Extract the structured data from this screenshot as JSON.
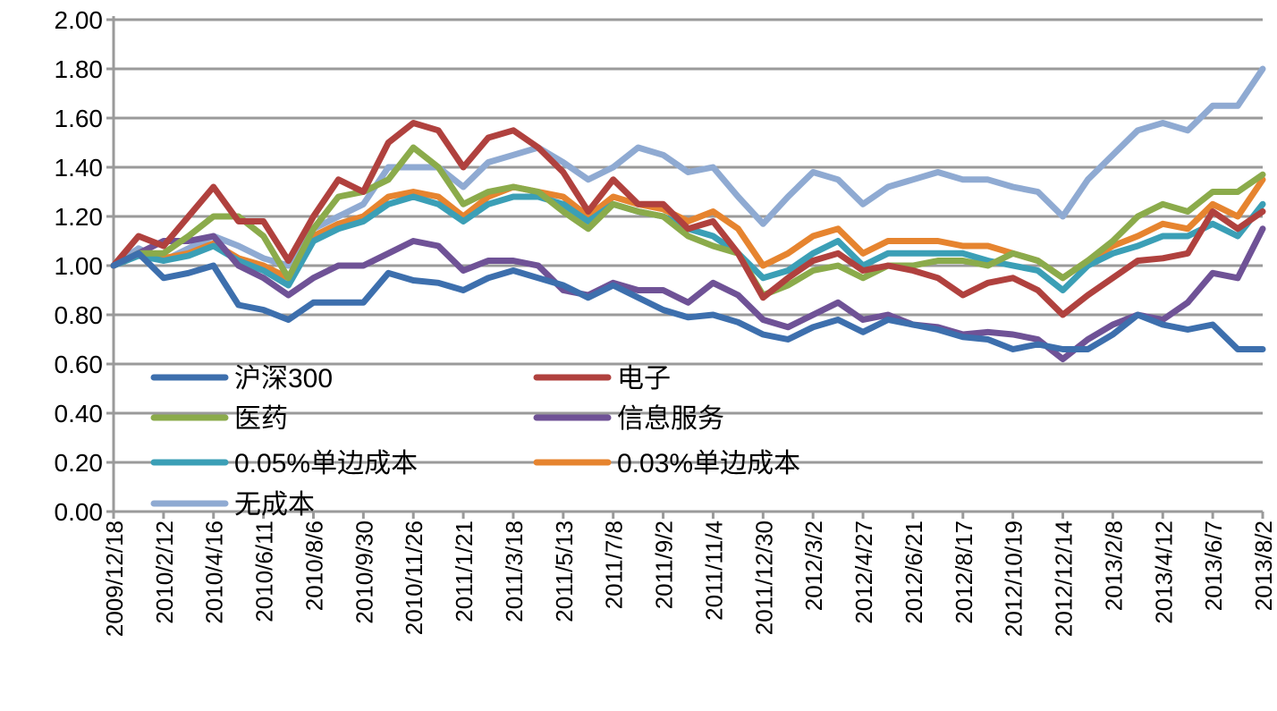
{
  "chart_data": {
    "type": "line",
    "title": "",
    "xlabel": "",
    "ylabel": "",
    "ylim": [
      0,
      2.0
    ],
    "yticks": [
      "0.00",
      "0.20",
      "0.40",
      "0.60",
      "0.80",
      "1.00",
      "1.20",
      "1.40",
      "1.60",
      "1.80",
      "2.00"
    ],
    "grid": true,
    "legend_placement": "bottom-left inside",
    "x_tick_labels": [
      "2009/12/18",
      "2010/2/12",
      "2010/4/16",
      "2010/6/11",
      "2010/8/6",
      "2010/9/30",
      "2010/11/26",
      "2011/1/21",
      "2011/3/18",
      "2011/5/13",
      "2011/7/8",
      "2011/9/2",
      "2011/11/4",
      "2011/12/30",
      "2012/3/2",
      "2012/4/27",
      "2012/6/21",
      "2012/8/17",
      "2012/10/19",
      "2012/12/14",
      "2013/2/8",
      "2013/4/12",
      "2013/6/7",
      "2013/8/2"
    ],
    "x": [
      "2009/12/18",
      "2010/1/15",
      "2010/2/12",
      "2010/3/12",
      "2010/4/16",
      "2010/5/14",
      "2010/6/11",
      "2010/7/9",
      "2010/8/6",
      "2010/9/3",
      "2010/9/30",
      "2010/10/29",
      "2010/11/26",
      "2010/12/24",
      "2011/1/21",
      "2011/2/18",
      "2011/3/18",
      "2011/4/15",
      "2011/5/13",
      "2011/6/10",
      "2011/7/8",
      "2011/8/5",
      "2011/9/2",
      "2011/9/30",
      "2011/11/4",
      "2011/12/2",
      "2011/12/30",
      "2012/1/27",
      "2012/3/2",
      "2012/3/30",
      "2012/4/27",
      "2012/5/25",
      "2012/6/21",
      "2012/7/20",
      "2012/8/17",
      "2012/9/14",
      "2012/10/19",
      "2012/11/16",
      "2012/12/14",
      "2013/1/11",
      "2013/2/8",
      "2013/3/8",
      "2013/4/12",
      "2013/5/10",
      "2013/6/7",
      "2013/7/5",
      "2013/8/2"
    ],
    "series": [
      {
        "name": "沪深300",
        "color": "#3d6fad",
        "values": [
          1.0,
          1.05,
          0.95,
          0.97,
          1.0,
          0.84,
          0.82,
          0.78,
          0.85,
          0.85,
          0.85,
          0.97,
          0.94,
          0.93,
          0.9,
          0.95,
          0.98,
          0.95,
          0.92,
          0.87,
          0.92,
          0.87,
          0.82,
          0.79,
          0.8,
          0.77,
          0.72,
          0.7,
          0.75,
          0.78,
          0.73,
          0.78,
          0.76,
          0.74,
          0.71,
          0.7,
          0.66,
          0.68,
          0.66,
          0.66,
          0.72,
          0.8,
          0.76,
          0.74,
          0.76,
          0.66,
          0.66
        ]
      },
      {
        "name": "电子",
        "color": "#b0413e",
        "values": [
          1.0,
          1.12,
          1.08,
          1.2,
          1.32,
          1.18,
          1.18,
          1.02,
          1.2,
          1.35,
          1.3,
          1.5,
          1.58,
          1.55,
          1.4,
          1.52,
          1.55,
          1.48,
          1.38,
          1.22,
          1.35,
          1.25,
          1.25,
          1.15,
          1.18,
          1.05,
          0.87,
          0.95,
          1.02,
          1.05,
          0.98,
          1.0,
          0.98,
          0.95,
          0.88,
          0.93,
          0.95,
          0.9,
          0.8,
          0.88,
          0.95,
          1.02,
          1.03,
          1.05,
          1.22,
          1.15,
          1.22
        ]
      },
      {
        "name": "医药",
        "color": "#8bab4b",
        "values": [
          1.0,
          1.05,
          1.05,
          1.12,
          1.2,
          1.2,
          1.12,
          0.95,
          1.15,
          1.28,
          1.3,
          1.35,
          1.48,
          1.4,
          1.25,
          1.3,
          1.32,
          1.3,
          1.22,
          1.15,
          1.25,
          1.22,
          1.2,
          1.12,
          1.08,
          1.05,
          0.88,
          0.92,
          0.98,
          1.0,
          0.95,
          1.0,
          1.0,
          1.02,
          1.02,
          1.0,
          1.05,
          1.02,
          0.95,
          1.02,
          1.1,
          1.2,
          1.25,
          1.22,
          1.3,
          1.3,
          1.37
        ]
      },
      {
        "name": "信息服务",
        "color": "#6f5296",
        "values": [
          1.0,
          1.05,
          1.1,
          1.1,
          1.12,
          1.0,
          0.95,
          0.88,
          0.95,
          1.0,
          1.0,
          1.05,
          1.1,
          1.08,
          0.98,
          1.02,
          1.02,
          1.0,
          0.9,
          0.88,
          0.93,
          0.9,
          0.9,
          0.85,
          0.93,
          0.88,
          0.78,
          0.75,
          0.8,
          0.85,
          0.78,
          0.8,
          0.76,
          0.75,
          0.72,
          0.73,
          0.72,
          0.7,
          0.62,
          0.7,
          0.76,
          0.8,
          0.78,
          0.85,
          0.97,
          0.95,
          1.15
        ]
      },
      {
        "name": "0.05%单边成本",
        "color": "#3b9fb6",
        "values": [
          1.0,
          1.04,
          1.02,
          1.04,
          1.08,
          1.02,
          0.98,
          0.92,
          1.1,
          1.15,
          1.18,
          1.25,
          1.28,
          1.25,
          1.18,
          1.25,
          1.28,
          1.28,
          1.25,
          1.18,
          1.25,
          1.22,
          1.2,
          1.15,
          1.12,
          1.05,
          0.95,
          0.98,
          1.05,
          1.1,
          1.0,
          1.05,
          1.05,
          1.05,
          1.05,
          1.02,
          1.0,
          0.98,
          0.9,
          1.0,
          1.05,
          1.08,
          1.12,
          1.12,
          1.17,
          1.12,
          1.25
        ]
      },
      {
        "name": "0.03%单边成本",
        "color": "#e6842f",
        "values": [
          1.0,
          1.05,
          1.03,
          1.05,
          1.09,
          1.03,
          1.0,
          0.95,
          1.12,
          1.17,
          1.2,
          1.28,
          1.3,
          1.28,
          1.2,
          1.28,
          1.32,
          1.3,
          1.28,
          1.2,
          1.28,
          1.25,
          1.23,
          1.18,
          1.22,
          1.15,
          1.0,
          1.05,
          1.12,
          1.15,
          1.05,
          1.1,
          1.1,
          1.1,
          1.08,
          1.08,
          1.05,
          1.02,
          0.95,
          1.02,
          1.08,
          1.12,
          1.17,
          1.15,
          1.25,
          1.2,
          1.35
        ]
      },
      {
        "name": "无成本",
        "color": "#8faad2",
        "values": [
          1.0,
          1.07,
          1.02,
          1.07,
          1.12,
          1.08,
          1.03,
          1.0,
          1.15,
          1.2,
          1.25,
          1.4,
          1.4,
          1.4,
          1.32,
          1.42,
          1.45,
          1.48,
          1.42,
          1.35,
          1.4,
          1.48,
          1.45,
          1.38,
          1.4,
          1.28,
          1.17,
          1.28,
          1.38,
          1.35,
          1.25,
          1.32,
          1.35,
          1.38,
          1.35,
          1.35,
          1.32,
          1.3,
          1.2,
          1.35,
          1.45,
          1.55,
          1.58,
          1.55,
          1.65,
          1.65,
          1.8
        ]
      }
    ]
  }
}
